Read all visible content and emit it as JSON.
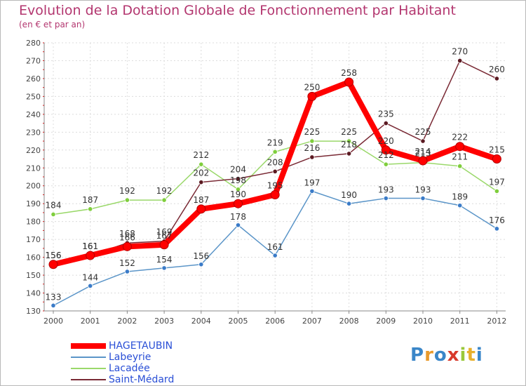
{
  "chart_data": {
    "type": "line",
    "title": "Evolution de la Dotation Globale de Fonctionnement par Habitant",
    "subtitle": "(en € et par an)",
    "xlabel": "",
    "ylabel": "",
    "x": [
      "2000",
      "2001",
      "2002",
      "2003",
      "2004",
      "2005",
      "2006",
      "2007",
      "2008",
      "2009",
      "2010",
      "2011",
      "2012"
    ],
    "ylim": [
      130,
      280
    ],
    "yticks": [
      130,
      140,
      150,
      160,
      170,
      180,
      190,
      200,
      210,
      220,
      230,
      240,
      250,
      260,
      270,
      280
    ],
    "grid": true,
    "legend_position": "bottom-left",
    "series": [
      {
        "name": "Labeyrie",
        "color": "#5b95c8",
        "marker_color": "#3a7bc8",
        "labels_above": false,
        "values": [
          133,
          144,
          152,
          154,
          156,
          178,
          161,
          197,
          190,
          193,
          193,
          189,
          176
        ]
      },
      {
        "name": "Lacadée",
        "color": "#9ad86a",
        "marker_color": "#7fce3c",
        "labels_above": true,
        "values": [
          184,
          187,
          192,
          192,
          212,
          198,
          219,
          225,
          225,
          212,
          213,
          211,
          197
        ]
      },
      {
        "name": "Saint-Médard",
        "color": "#7a2a35",
        "marker_color": "#5b1a22",
        "labels_above": true,
        "values": [
          156,
          161,
          168,
          169,
          202,
          204,
          208,
          216,
          218,
          235,
          225,
          270,
          260
        ]
      },
      {
        "name": "HAGETAUBIN",
        "color": "#ff0000",
        "marker_color": "#ff0000",
        "labels_above": true,
        "values": [
          156,
          161,
          166,
          167,
          187,
          190,
          195,
          250,
          258,
          220,
          214,
          222,
          215
        ]
      }
    ],
    "value_label_series": [
      "Labeyrie",
      "Lacadée",
      "Saint-Médard",
      "HAGETAUBIN"
    ]
  },
  "legend": {
    "items": [
      {
        "name": "HAGETAUBIN",
        "color": "#ff0000"
      },
      {
        "name": "Labeyrie",
        "color": "#5b95c8"
      },
      {
        "name": "Lacadée",
        "color": "#9ad86a"
      },
      {
        "name": "Saint-Médard",
        "color": "#7a2a35"
      }
    ]
  },
  "logo": {
    "letters": [
      "P",
      "r",
      "o",
      "x",
      "i",
      "t",
      "i"
    ],
    "colors": [
      "#3a86c8",
      "#e89a2c",
      "#3a86c8",
      "#d83a2c",
      "#9ac83a",
      "#e8b02c",
      "#3a86c8"
    ]
  }
}
